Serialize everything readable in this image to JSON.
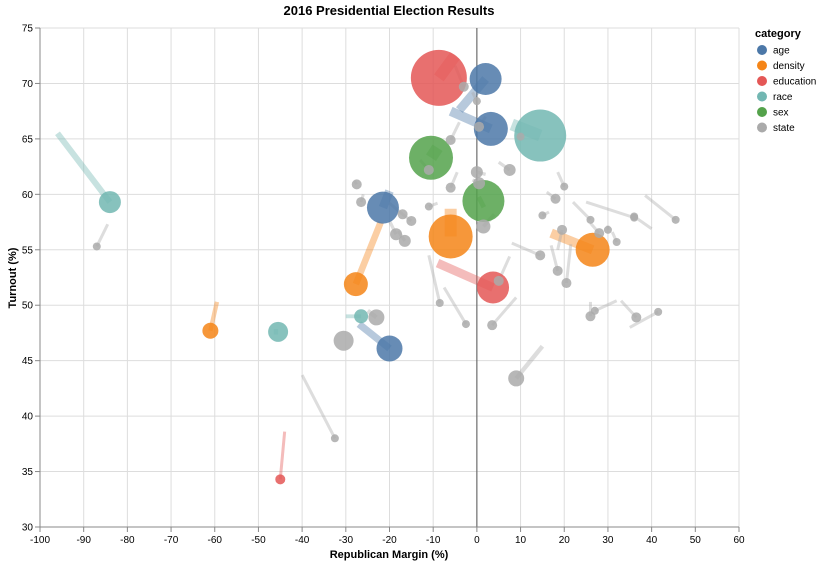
{
  "chart_data": {
    "type": "scatter",
    "title": "2016 Presidential Election Results",
    "xlabel": "Republican Margin (%)",
    "ylabel": "Turnout (%)",
    "xlim": [
      -100,
      60
    ],
    "ylim": [
      30,
      75
    ],
    "xticks": [
      -100,
      -90,
      -80,
      -70,
      -60,
      -50,
      -40,
      -30,
      -20,
      -10,
      0,
      10,
      20,
      30,
      40,
      50,
      60
    ],
    "yticks": [
      30,
      35,
      40,
      45,
      50,
      55,
      60,
      65,
      70,
      75
    ],
    "grid": true,
    "legend": {
      "title": "category",
      "placement": "top-right",
      "entries": [
        {
          "name": "age",
          "color": "#4c78a8"
        },
        {
          "name": "density",
          "color": "#f58518"
        },
        {
          "name": "education",
          "color": "#e45756"
        },
        {
          "name": "race",
          "color": "#72b7b2"
        },
        {
          "name": "sex",
          "color": "#54a24b"
        },
        {
          "name": "state",
          "color": "#aaaaaa"
        }
      ]
    },
    "series": [
      {
        "name": "age",
        "points": [
          {
            "x": 2,
            "y": 70.4,
            "size": 16,
            "x0": -4,
            "y0": 67.6
          },
          {
            "x": 3.2,
            "y": 65.9,
            "size": 17,
            "x0": -6,
            "y0": 67.5
          },
          {
            "x": -21.5,
            "y": 58.8,
            "size": 16,
            "x0": -20,
            "y0": 60.3
          },
          {
            "x": -20,
            "y": 46.1,
            "size": 13,
            "x0": -27,
            "y0": 48.3
          }
        ]
      },
      {
        "name": "density",
        "points": [
          {
            "x": -6,
            "y": 56.2,
            "size": 22,
            "x0": -6,
            "y0": 58.7
          },
          {
            "x": 26.5,
            "y": 55,
            "size": 17,
            "x0": 17,
            "y0": 56.5
          },
          {
            "x": -27.7,
            "y": 51.9,
            "size": 12,
            "x0": -22,
            "y0": 57.5
          },
          {
            "x": -61,
            "y": 47.7,
            "size": 8,
            "x0": -59.5,
            "y0": 50.3
          }
        ]
      },
      {
        "name": "education",
        "points": [
          {
            "x": -8.7,
            "y": 70.5,
            "size": 28,
            "x0": -5,
            "y0": 72.5
          },
          {
            "x": 3.7,
            "y": 51.6,
            "size": 16,
            "x0": -9,
            "y0": 53.8
          },
          {
            "x": -45,
            "y": 34.3,
            "size": 5,
            "x0": -44,
            "y0": 38.6
          }
        ]
      },
      {
        "name": "race",
        "points": [
          {
            "x": 14.5,
            "y": 65.3,
            "size": 26,
            "x0": 8,
            "y0": 66.3
          },
          {
            "x": -84,
            "y": 59.3,
            "size": 11,
            "x0": -96,
            "y0": 65.5
          },
          {
            "x": -45.5,
            "y": 47.6,
            "size": 10,
            "x0": -46.5,
            "y0": 47.6
          },
          {
            "x": -26.5,
            "y": 49,
            "size": 7,
            "x0": -30,
            "y0": 49
          }
        ]
      },
      {
        "name": "sex",
        "points": [
          {
            "x": -10.5,
            "y": 63.3,
            "size": 22,
            "x0": -9,
            "y0": 64.2
          },
          {
            "x": 1.5,
            "y": 59.4,
            "size": 21,
            "x0": 0.5,
            "y0": 59.2
          }
        ]
      },
      {
        "name": "state",
        "points": [
          {
            "x": -30.5,
            "y": 46.8,
            "size": 10,
            "x0": -30.5,
            "y0": 46.8
          },
          {
            "x": -23,
            "y": 48.9,
            "size": 8,
            "x0": -25,
            "y0": 49.5
          },
          {
            "x": 9,
            "y": 43.4,
            "size": 8,
            "x0": 15,
            "y0": 46.3
          },
          {
            "x": -27.5,
            "y": 60.9,
            "size": 5,
            "x0": -28,
            "y0": 61.2
          },
          {
            "x": -26.5,
            "y": 59.3,
            "size": 5,
            "x0": -26,
            "y0": 60
          },
          {
            "x": -17,
            "y": 58.2,
            "size": 5,
            "x0": -20,
            "y0": 59.2
          },
          {
            "x": -15,
            "y": 57.6,
            "size": 5,
            "x0": -17,
            "y0": 58.2
          },
          {
            "x": -11,
            "y": 58.9,
            "size": 4,
            "x0": -9,
            "y0": 59.2
          },
          {
            "x": -16.5,
            "y": 55.8,
            "size": 6,
            "x0": -18,
            "y0": 56.7
          },
          {
            "x": -18.5,
            "y": 56.4,
            "size": 6,
            "x0": -20,
            "y0": 57.6
          },
          {
            "x": -6,
            "y": 60.6,
            "size": 5,
            "x0": -4.5,
            "y0": 62
          },
          {
            "x": -11,
            "y": 62.2,
            "size": 5,
            "x0": -13,
            "y0": 63.1
          },
          {
            "x": -6,
            "y": 64.9,
            "size": 5,
            "x0": -4,
            "y0": 66.5
          },
          {
            "x": -3,
            "y": 69.7,
            "size": 5,
            "x0": -5,
            "y0": 71.6
          },
          {
            "x": 0,
            "y": 68.4,
            "size": 4,
            "x0": -1,
            "y0": 69.2
          },
          {
            "x": 0.5,
            "y": 66.1,
            "size": 5,
            "x0": 2,
            "y0": 67
          },
          {
            "x": 0,
            "y": 62,
            "size": 6,
            "x0": 2,
            "y0": 61.8
          },
          {
            "x": 0.5,
            "y": 61,
            "size": 6,
            "x0": -1,
            "y0": 61.3
          },
          {
            "x": 1.5,
            "y": 57.1,
            "size": 7,
            "x0": 4,
            "y0": 58.2
          },
          {
            "x": 5,
            "y": 52.2,
            "size": 5,
            "x0": 7.5,
            "y0": 54.4
          },
          {
            "x": 7.5,
            "y": 62.2,
            "size": 6,
            "x0": 5,
            "y0": 62.9
          },
          {
            "x": 10,
            "y": 65.2,
            "size": 4,
            "x0": 10.5,
            "y0": 65.2
          },
          {
            "x": 14.5,
            "y": 54.5,
            "size": 5,
            "x0": 8,
            "y0": 55.6
          },
          {
            "x": 15,
            "y": 58.1,
            "size": 4,
            "x0": 16.5,
            "y0": 58.4
          },
          {
            "x": 18,
            "y": 59.6,
            "size": 5,
            "x0": 16,
            "y0": 60.2
          },
          {
            "x": 20,
            "y": 60.7,
            "size": 4,
            "x0": 18.5,
            "y0": 62
          },
          {
            "x": 18.5,
            "y": 53.1,
            "size": 5,
            "x0": 17,
            "y0": 55.4
          },
          {
            "x": 20.5,
            "y": 52,
            "size": 5,
            "x0": 21.5,
            "y0": 55.5
          },
          {
            "x": 19.5,
            "y": 56.8,
            "size": 5,
            "x0": 18.5,
            "y0": 55
          },
          {
            "x": 26,
            "y": 57.7,
            "size": 4,
            "x0": 22,
            "y0": 59.3
          },
          {
            "x": 28,
            "y": 56.5,
            "size": 5,
            "x0": 26,
            "y0": 57.4
          },
          {
            "x": 30,
            "y": 56.8,
            "size": 4,
            "x0": 30,
            "y0": 57.2
          },
          {
            "x": 32,
            "y": 55.7,
            "size": 4,
            "x0": 31,
            "y0": 56.6
          },
          {
            "x": 36,
            "y": 57.9,
            "size": 4,
            "x0": 25,
            "y0": 59.3
          },
          {
            "x": 36,
            "y": 58,
            "size": 4,
            "x0": 40,
            "y0": 56.9
          },
          {
            "x": 26,
            "y": 49,
            "size": 5,
            "x0": 26,
            "y0": 50.3
          },
          {
            "x": 27,
            "y": 49.5,
            "size": 4,
            "x0": 32,
            "y0": 50.4
          },
          {
            "x": 36.5,
            "y": 48.9,
            "size": 5,
            "x0": 33,
            "y0": 50.4
          },
          {
            "x": 41.5,
            "y": 49.4,
            "size": 4,
            "x0": 35,
            "y0": 48
          },
          {
            "x": 45.5,
            "y": 57.7,
            "size": 4,
            "x0": 38.5,
            "y0": 59.9
          },
          {
            "x": -8.5,
            "y": 50.2,
            "size": 4,
            "x0": -11,
            "y0": 54.5
          },
          {
            "x": -2.5,
            "y": 48.3,
            "size": 4,
            "x0": -7.5,
            "y0": 51.6
          },
          {
            "x": 3.5,
            "y": 48.2,
            "size": 5,
            "x0": 9,
            "y0": 50.7
          },
          {
            "x": -32.5,
            "y": 38,
            "size": 4,
            "x0": -40,
            "y0": 43.7
          },
          {
            "x": -87,
            "y": 55.3,
            "size": 4,
            "x0": -84.5,
            "y0": 57.3
          }
        ]
      }
    ]
  }
}
